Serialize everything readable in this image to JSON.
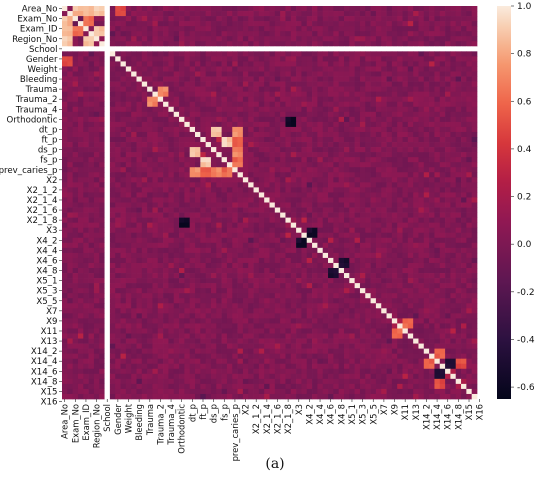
{
  "chart_data": {
    "type": "heatmap",
    "title": "",
    "caption": "(a)",
    "y_tick_labels": [
      "Area_No",
      "Exam_No",
      "Exam_ID",
      "Region_No",
      "School",
      "Gender",
      "Weight",
      "Bleeding",
      "Trauma",
      "Trauma_2",
      "Trauma_4",
      "Orthodontic",
      "dt_p",
      "ft_p",
      "ds_p",
      "fs_p",
      "prev_caries_p",
      "X2",
      "X2_1_2",
      "X2_1_4",
      "X2_1_6",
      "X2_1_8",
      "X3",
      "X4_2",
      "X4_4",
      "X4_6",
      "X4_8",
      "X5_1",
      "X5_3",
      "X5_5",
      "X7",
      "X9",
      "X11",
      "X13",
      "X14_2",
      "X14_4",
      "X14_6",
      "X14_8",
      "X15",
      "X16"
    ],
    "x_tick_labels": [
      "Area_No",
      "Exam_No",
      "Exam_ID",
      "Region_No",
      "School",
      "Gender",
      "Weight",
      "Bleeding",
      "Trauma",
      "Trauma_2",
      "Trauma_4",
      "Orthodontic",
      "dt_p",
      "ft_p",
      "ds_p",
      "fs_p",
      "prev_caries_p",
      "X2",
      "X2_1_2",
      "X2_1_4",
      "X2_1_6",
      "X2_1_8",
      "X3",
      "X4_2",
      "X4_4",
      "X4_6",
      "X4_8",
      "X5_1",
      "X5_3",
      "X5_5",
      "X7",
      "X9",
      "X11",
      "X13",
      "X14_2",
      "X14_4",
      "X14_6",
      "X14_8",
      "X15",
      "X16"
    ],
    "colorbar": {
      "min": -0.65,
      "max": 1.0,
      "ticks": [
        "1.0",
        "0.8",
        "0.6",
        "0.4",
        "0.2",
        "0.0",
        "-0.2",
        "-0.4",
        "-0.6"
      ]
    },
    "colormap": "rocket",
    "n_variables": 78,
    "diagonal_value": 1.0,
    "missing_variable": "School",
    "baseline_correlation": 0.02,
    "notable_correlations": [
      {
        "a": "Area_No",
        "b": "Exam_No",
        "value": 0.85
      },
      {
        "a": "Area_No",
        "b": "Exam_ID",
        "value": 0.85
      },
      {
        "a": "Area_No",
        "b": "Region_No",
        "value": 0.9
      },
      {
        "a": "Exam_No",
        "b": "Exam_ID",
        "value": 0.6
      },
      {
        "a": "Exam_ID",
        "b": "Region_No",
        "value": 0.85
      },
      {
        "a": "Area_No",
        "b": "Gender",
        "value": 0.5
      },
      {
        "a": "Trauma",
        "b": "Trauma_2",
        "value": 0.7
      },
      {
        "a": "dt_p",
        "b": "ds_p",
        "value": 0.9
      },
      {
        "a": "ft_p",
        "b": "fs_p",
        "value": 0.9
      },
      {
        "a": "dt_p",
        "b": "prev_caries_p",
        "value": 0.75
      },
      {
        "a": "ft_p",
        "b": "prev_caries_p",
        "value": 0.55
      },
      {
        "a": "ds_p",
        "b": "prev_caries_p",
        "value": 0.7
      },
      {
        "a": "fs_p",
        "b": "prev_caries_p",
        "value": 0.6
      },
      {
        "a": "Orthodontic",
        "b": "X2_1_8",
        "value": -0.6
      },
      {
        "a": "X2_1_8",
        "b": "Orthodontic",
        "value": -0.6
      },
      {
        "a": "X4_2",
        "b": "X3",
        "value": -0.55
      },
      {
        "a": "X4_8",
        "b": "X4_6",
        "value": -0.5
      },
      {
        "a": "X9",
        "b": "X11",
        "value": 0.6
      },
      {
        "a": "X14_2",
        "b": "X14_4",
        "value": 0.55
      },
      {
        "a": "X14_4",
        "b": "X14_6",
        "value": -0.45
      },
      {
        "a": "X15",
        "b": "X16",
        "value": 0.75
      },
      {
        "a": "X14_4",
        "b": "X14_8",
        "value": 0.5
      }
    ]
  }
}
